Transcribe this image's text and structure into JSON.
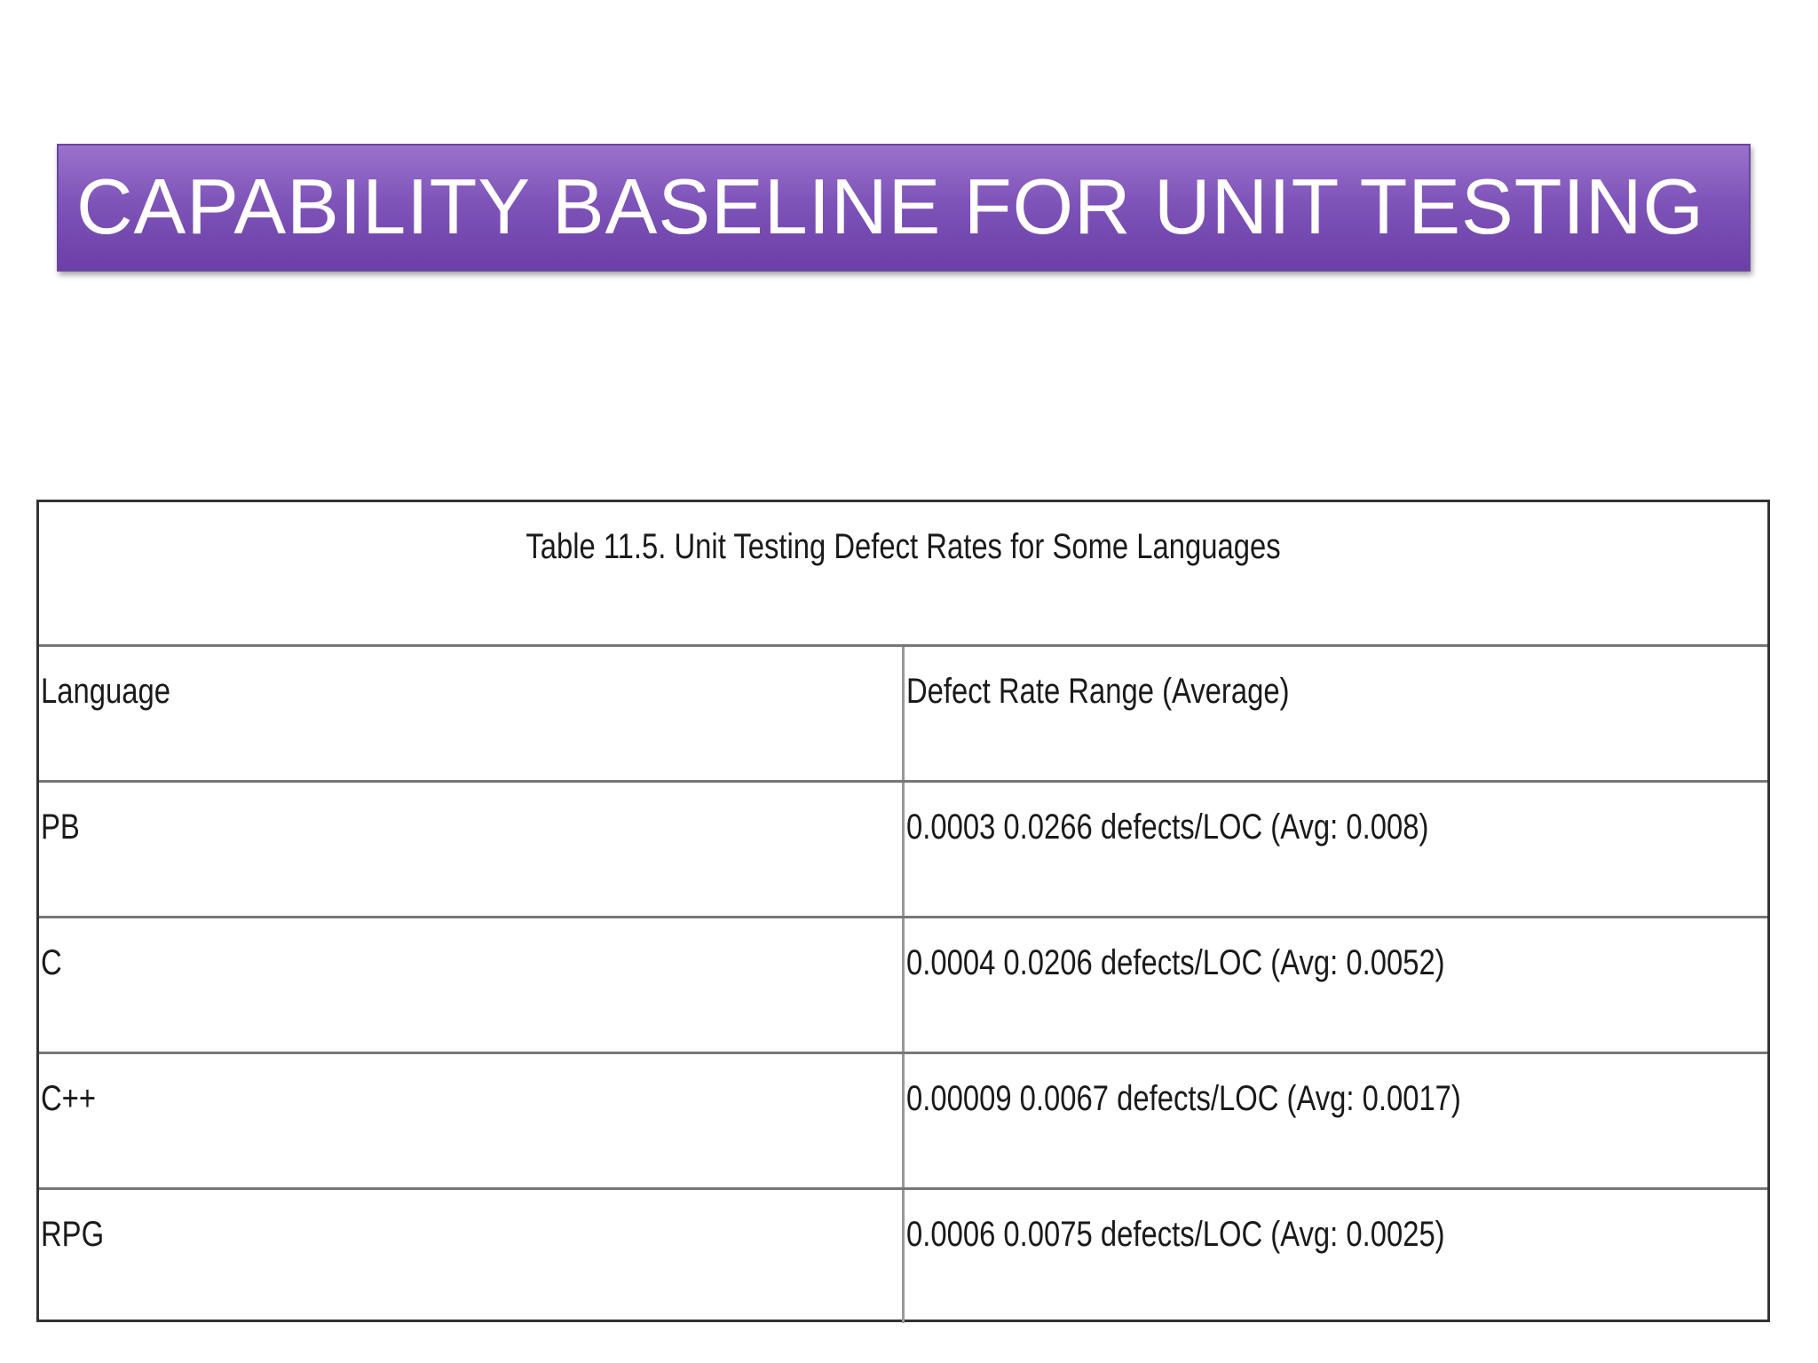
{
  "slide": {
    "title": "CAPABILITY BASELINE FOR UNIT TESTING"
  },
  "table": {
    "caption": "Table 11.5. Unit Testing Defect Rates for Some Languages",
    "headers": [
      "Language",
      "Defect Rate Range (Average)"
    ],
    "rows": [
      {
        "language": "PB",
        "rate": "0.0003 0.0266 defects/LOC (Avg: 0.008)"
      },
      {
        "language": "C",
        "rate": "0.0004 0.0206 defects/LOC (Avg: 0.0052)"
      },
      {
        "language": "C++",
        "rate": "0.00009 0.0067 defects/LOC (Avg: 0.0017)"
      },
      {
        "language": "RPG",
        "rate": "0.0006 0.0075 defects/LOC (Avg: 0.0025)"
      }
    ]
  },
  "colors": {
    "title_bar": "#7f54b9",
    "title_text": "#ffffff",
    "table_border": "#333333"
  }
}
